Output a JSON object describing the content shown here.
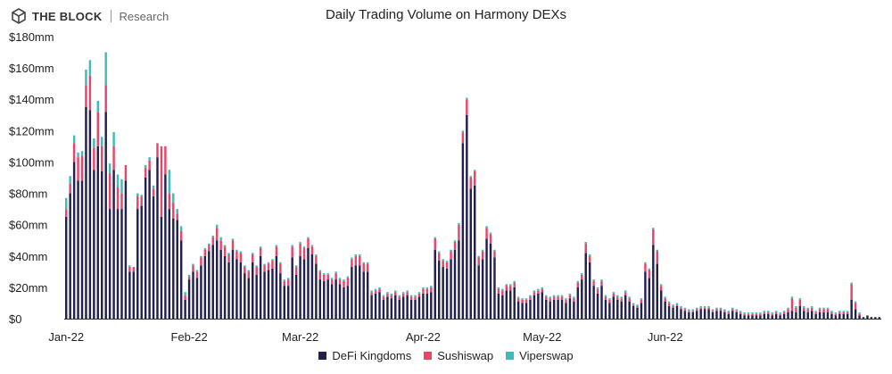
{
  "brand": {
    "name": "THE BLOCK",
    "sub": "Research",
    "logo_icon": "cube-icon"
  },
  "chart_data": {
    "type": "bar",
    "stacked": true,
    "title": "Daily Trading Volume on Harmony DEXs",
    "xlabel": "",
    "ylabel": "",
    "y_unit": "mm",
    "ylim": [
      0,
      180
    ],
    "y_ticks": [
      0,
      20,
      40,
      60,
      80,
      100,
      120,
      140,
      160,
      180
    ],
    "y_tick_labels": [
      "$0",
      "$20mm",
      "$40mm",
      "$60mm",
      "$80mm",
      "$100mm",
      "$120mm",
      "$140mm",
      "$160mm",
      "$180mm"
    ],
    "x_start": "2022-01-01",
    "x_ticks": [
      {
        "date": "2022-01-01",
        "label": "Jan-22"
      },
      {
        "date": "2022-02-01",
        "label": "Feb-22"
      },
      {
        "date": "2022-03-01",
        "label": "Mar-22"
      },
      {
        "date": "2022-04-01",
        "label": "Apr-22"
      },
      {
        "date": "2022-05-01",
        "label": "May-22"
      },
      {
        "date": "2022-06-01",
        "label": "Jun-22"
      }
    ],
    "legend_position": "bottom",
    "grid": false,
    "series": [
      {
        "name": "DeFi Kingdoms",
        "color": "#22204f",
        "values": [
          65,
          80,
          100,
          88,
          88,
          135,
          133,
          95,
          110,
          94,
          132,
          70,
          95,
          70,
          70,
          88,
          30,
          30,
          70,
          72,
          90,
          95,
          78,
          103,
          65,
          92,
          70,
          64,
          63,
          50,
          12,
          25,
          30,
          26,
          34,
          40,
          43,
          47,
          50,
          44,
          40,
          36,
          44,
          38,
          36,
          29,
          26,
          36,
          28,
          40,
          30,
          31,
          32,
          40,
          29,
          21,
          21,
          39,
          28,
          40,
          38,
          45,
          41,
          35,
          25,
          24,
          25,
          22,
          25,
          22,
          20,
          21,
          33,
          34,
          34,
          30,
          30,
          15,
          16,
          17,
          12,
          14,
          13,
          15,
          12,
          14,
          15,
          12,
          12,
          14,
          16,
          16,
          17,
          44,
          37,
          33,
          32,
          38,
          44,
          50,
          112,
          130,
          83,
          85,
          34,
          38,
          51,
          48,
          39,
          16,
          15,
          18,
          18,
          20,
          11,
          10,
          10,
          12,
          15,
          16,
          17,
          12,
          11,
          12,
          12,
          12,
          10,
          13,
          11,
          20,
          25,
          42,
          36,
          21,
          16,
          21,
          12,
          10,
          14,
          12,
          11,
          15,
          11,
          8,
          7,
          10,
          30,
          26,
          47,
          35,
          18,
          11,
          8,
          7,
          8,
          6,
          5,
          4,
          4,
          5,
          6,
          6,
          6,
          4,
          5,
          5,
          4,
          3,
          5,
          4,
          3,
          2,
          2,
          2,
          2,
          2,
          3,
          3,
          2,
          3,
          2,
          3,
          4,
          5,
          4,
          8,
          5,
          4,
          5,
          3,
          4,
          4,
          4,
          3,
          2,
          3,
          3,
          3,
          12,
          6,
          2,
          1,
          2,
          1,
          1,
          1
        ],
        "segments_note": ""
      },
      {
        "name": "Sushiswap",
        "color": "#e8456a",
        "values": [
          5,
          6,
          12,
          15,
          16,
          14,
          22,
          14,
          22,
          16,
          17,
          23,
          15,
          14,
          10,
          10,
          3,
          3,
          8,
          6,
          6,
          6,
          5,
          9,
          45,
          18,
          10,
          10,
          4,
          6,
          3,
          2,
          4,
          4,
          5,
          4,
          4,
          5,
          8,
          6,
          6,
          5,
          6,
          5,
          6,
          4,
          4,
          5,
          5,
          5,
          4,
          4,
          5,
          6,
          6,
          3,
          4,
          7,
          5,
          8,
          7,
          6,
          5,
          5,
          5,
          4,
          3,
          3,
          4,
          3,
          4,
          5,
          5,
          6,
          6,
          5,
          5,
          2,
          2,
          2,
          2,
          2,
          2,
          2,
          2,
          2,
          2,
          2,
          2,
          2,
          3,
          3,
          3,
          7,
          5,
          4,
          4,
          5,
          5,
          10,
          7,
          10,
          7,
          9,
          5,
          5,
          7,
          6,
          4,
          3,
          3,
          3,
          3,
          3,
          2,
          2,
          2,
          2,
          2,
          2,
          2,
          2,
          2,
          2,
          2,
          2,
          2,
          2,
          2,
          3,
          3,
          6,
          4,
          3,
          3,
          3,
          2,
          2,
          2,
          2,
          2,
          2,
          2,
          1,
          1,
          2,
          5,
          5,
          10,
          8,
          3,
          2,
          2,
          1,
          1,
          1,
          1,
          1,
          1,
          1,
          1,
          1,
          1,
          1,
          1,
          1,
          1,
          1,
          1,
          1,
          1,
          1,
          1,
          1,
          1,
          1,
          1,
          1,
          1,
          1,
          1,
          1,
          2,
          8,
          3,
          4,
          2,
          2,
          2,
          1,
          2,
          2,
          2,
          1,
          1,
          1,
          1,
          1,
          10,
          4,
          1,
          0,
          0,
          0,
          0,
          0
        ]
      },
      {
        "name": "Viperswap",
        "color": "#3fbcb8",
        "values": [
          7,
          5,
          5,
          3,
          3,
          10,
          10,
          6,
          7,
          6,
          21,
          6,
          9,
          8,
          9,
          0,
          1,
          0,
          2,
          1,
          2,
          2,
          2,
          0,
          0,
          0,
          15,
          6,
          3,
          3,
          2,
          1,
          1,
          1,
          1,
          1,
          1,
          1,
          2,
          2,
          1,
          1,
          1,
          1,
          1,
          1,
          1,
          1,
          1,
          1,
          1,
          1,
          1,
          1,
          1,
          1,
          1,
          1,
          1,
          1,
          1,
          1,
          1,
          1,
          1,
          1,
          1,
          1,
          1,
          1,
          1,
          1,
          1,
          1,
          1,
          1,
          1,
          1,
          1,
          1,
          1,
          1,
          1,
          1,
          1,
          1,
          1,
          1,
          1,
          1,
          1,
          1,
          1,
          1,
          1,
          1,
          1,
          1,
          1,
          1,
          1,
          1,
          1,
          1,
          1,
          1,
          1,
          1,
          1,
          1,
          1,
          1,
          1,
          1,
          1,
          1,
          1,
          1,
          1,
          1,
          1,
          1,
          1,
          1,
          1,
          1,
          1,
          1,
          1,
          1,
          1,
          1,
          1,
          1,
          1,
          1,
          1,
          1,
          1,
          1,
          1,
          1,
          1,
          1,
          1,
          1,
          1,
          1,
          1,
          1,
          1,
          1,
          1,
          1,
          1,
          1,
          1,
          1,
          1,
          1,
          1,
          1,
          1,
          1,
          1,
          1,
          1,
          1,
          1,
          1,
          1,
          1,
          1,
          1,
          1,
          1,
          1,
          1,
          1,
          1,
          1,
          1,
          1,
          1,
          1,
          1,
          1,
          1,
          1,
          1,
          1,
          1,
          1,
          1,
          1,
          1,
          1,
          1,
          1,
          1,
          1,
          0,
          0,
          0,
          0,
          0
        ]
      }
    ]
  }
}
